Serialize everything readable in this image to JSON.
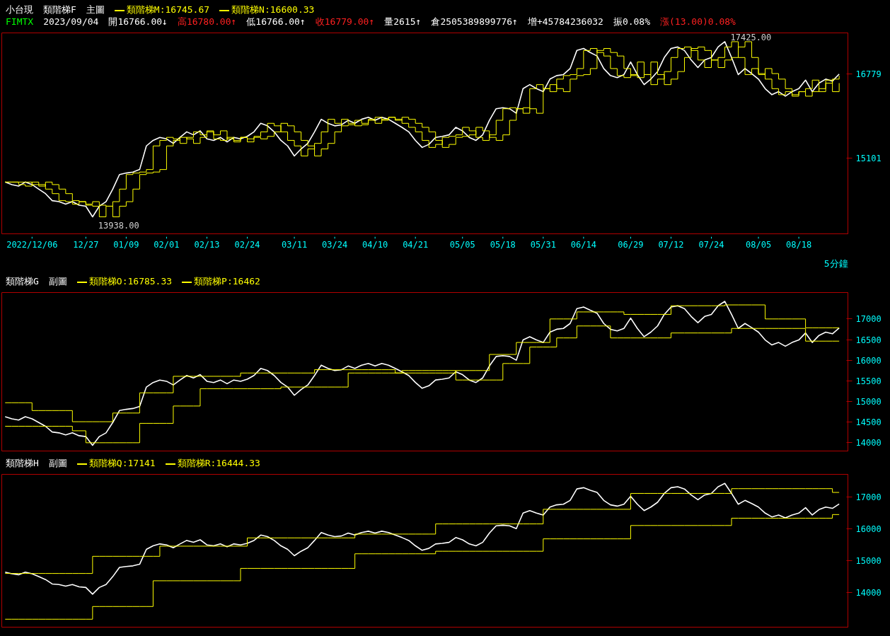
{
  "chart_data": [
    {
      "type": "line",
      "title": "小台現",
      "subtitle": "類階梯F",
      "xlabel": "5分鐘",
      "legend": "top left",
      "annotations": [
        "主圖",
        "FIMTX",
        "2023/09/04",
        "開16766.00↓",
        "高16780.00↑",
        "低16766.00↑",
        "收16779.00↑",
        "量2615↑",
        "倉2505389899776↑",
        "增+45784236032",
        "振0.08%",
        "漲(13.00)0.08%",
        {
          "text": "17425.00",
          "y": 17425
        },
        {
          "text": "13938.00",
          "y": 13938
        }
      ],
      "categories": [
        null,
        null,
        null,
        null,
        "2022/12/06",
        null,
        null,
        null,
        null,
        null,
        null,
        null,
        "12/27",
        null,
        null,
        null,
        null,
        null,
        "01/09",
        null,
        null,
        null,
        null,
        null,
        "02/01",
        null,
        null,
        null,
        null,
        null,
        "02/13",
        null,
        null,
        null,
        null,
        null,
        "02/24",
        null,
        null,
        null,
        null,
        null,
        null,
        "03/11",
        null,
        null,
        null,
        null,
        null,
        "03/24",
        null,
        null,
        null,
        null,
        null,
        "04/10",
        null,
        null,
        null,
        null,
        null,
        "04/21",
        null,
        null,
        null,
        null,
        null,
        null,
        "05/05",
        null,
        null,
        null,
        null,
        null,
        "05/18",
        null,
        null,
        null,
        null,
        null,
        "05/31",
        null,
        null,
        null,
        null,
        null,
        "06/14",
        null,
        null,
        null,
        null,
        null,
        null,
        "06/29",
        null,
        null,
        null,
        null,
        null,
        "07/12",
        null,
        null,
        null,
        null,
        null,
        "07/24",
        null,
        null,
        null,
        null,
        null,
        null,
        "08/05",
        null,
        null,
        null,
        null,
        null,
        "08/18",
        null,
        null,
        null,
        null,
        null,
        null
      ],
      "ylim": [
        13600,
        17600
      ],
      "yticks": [
        15101,
        16779
      ],
      "series": [
        {
          "color": "#ffffff",
          "values": [
            14630,
            14580,
            14550,
            14630,
            14580,
            14490,
            14400,
            14260,
            14240,
            14190,
            14240,
            14170,
            14150,
            13938,
            14150,
            14240,
            14490,
            14780,
            14810,
            14830,
            14880,
            15350,
            15460,
            15520,
            15490,
            15400,
            15520,
            15630,
            15570,
            15650,
            15490,
            15460,
            15520,
            15430,
            15520,
            15490,
            15540,
            15630,
            15800,
            15750,
            15630,
            15460,
            15350,
            15150,
            15290,
            15400,
            15630,
            15880,
            15800,
            15750,
            15770,
            15860,
            15800,
            15880,
            15920,
            15860,
            15920,
            15880,
            15800,
            15720,
            15630,
            15460,
            15320,
            15380,
            15520,
            15540,
            15570,
            15720,
            15650,
            15520,
            15460,
            15570,
            15860,
            16090,
            16110,
            16090,
            16000,
            16490,
            16570,
            16490,
            16430,
            16680,
            16750,
            16770,
            16890,
            17250,
            17290,
            17210,
            17140,
            16890,
            16750,
            16710,
            16770,
            17020,
            16770,
            16570,
            16680,
            16830,
            17110,
            17290,
            17320,
            17250,
            17060,
            16910,
            17060,
            17110,
            17320,
            17425,
            17110,
            16770,
            16890,
            16790,
            16680,
            16490,
            16370,
            16430,
            16340,
            16430,
            16490,
            16660,
            16430,
            16600,
            16680,
            16640,
            16779
          ]
        },
        {
          "type": "step",
          "name": "類階梯M:16745.67",
          "color": "#ffff00",
          "values": [
            14630,
            14630,
            14580,
            14550,
            14630,
            14580,
            14490,
            14400,
            14260,
            14240,
            14190,
            14240,
            14170,
            14150,
            13938,
            14150,
            14240,
            14490,
            14780,
            14810,
            14830,
            14880,
            15350,
            15460,
            15520,
            15490,
            15400,
            15520,
            15630,
            15570,
            15650,
            15490,
            15460,
            15520,
            15430,
            15520,
            15490,
            15540,
            15630,
            15800,
            15750,
            15630,
            15460,
            15350,
            15150,
            15290,
            15400,
            15630,
            15880,
            15800,
            15750,
            15770,
            15860,
            15800,
            15880,
            15920,
            15860,
            15920,
            15880,
            15800,
            15720,
            15630,
            15460,
            15320,
            15380,
            15520,
            15540,
            15570,
            15720,
            15650,
            15520,
            15460,
            15570,
            15860,
            16090,
            16110,
            16090,
            16000,
            16490,
            16570,
            16490,
            16430,
            16680,
            16750,
            16770,
            16890,
            17250,
            17290,
            17210,
            17140,
            16890,
            16750,
            16710,
            16770,
            17020,
            16770,
            16570,
            16680,
            16830,
            17110,
            17290,
            17320,
            17250,
            17060,
            16910,
            17060,
            17110,
            17320,
            17425,
            17110,
            16770,
            16890,
            16790,
            16680,
            16490,
            16370,
            16430,
            16340,
            16430,
            16490,
            16660,
            16430,
            16600,
            16680,
            16745.67
          ]
        },
        {
          "type": "step",
          "name": "類階梯N:16600.33",
          "color": "#ffff00",
          "values": [
            14630,
            14630,
            14630,
            14630,
            14580,
            14550,
            14630,
            14580,
            14490,
            14400,
            14260,
            14240,
            14190,
            14240,
            14170,
            14150,
            13938,
            14150,
            14240,
            14490,
            14780,
            14810,
            14830,
            14880,
            15350,
            15460,
            15520,
            15490,
            15400,
            15520,
            15630,
            15570,
            15650,
            15490,
            15460,
            15520,
            15430,
            15520,
            15490,
            15540,
            15630,
            15800,
            15750,
            15630,
            15460,
            15350,
            15150,
            15290,
            15400,
            15630,
            15880,
            15800,
            15750,
            15770,
            15860,
            15800,
            15880,
            15920,
            15860,
            15920,
            15880,
            15800,
            15720,
            15630,
            15460,
            15320,
            15380,
            15520,
            15540,
            15570,
            15720,
            15650,
            15520,
            15460,
            15570,
            15860,
            16090,
            16110,
            16090,
            16000,
            16490,
            16570,
            16490,
            16430,
            16680,
            16750,
            16770,
            16890,
            17250,
            17290,
            17210,
            17140,
            16890,
            16750,
            16710,
            16770,
            17020,
            16770,
            16570,
            16680,
            16830,
            17110,
            17290,
            17320,
            17250,
            17060,
            16910,
            17060,
            17110,
            17320,
            17425,
            17110,
            16770,
            16890,
            16790,
            16680,
            16490,
            16370,
            16430,
            16340,
            16430,
            16490,
            16660,
            16430,
            16600.33
          ]
        }
      ]
    },
    {
      "type": "line",
      "title": "類階梯G",
      "subtitle": "副圖",
      "tick_labels": "y",
      "legend": "top left",
      "categories": [
        null,
        null,
        null,
        null,
        null,
        null,
        null,
        null,
        null,
        null,
        null,
        null,
        null,
        null,
        null,
        null,
        null,
        null,
        null,
        null,
        null,
        null,
        null,
        null,
        null,
        null,
        null,
        null,
        null,
        null,
        null,
        null,
        null,
        null,
        null,
        null,
        null,
        null,
        null,
        null,
        null,
        null,
        null,
        null,
        null,
        null,
        null,
        null,
        null,
        null,
        null,
        null,
        null,
        null,
        null,
        null,
        null,
        null,
        null,
        null,
        null,
        null,
        null,
        null,
        null,
        null,
        null,
        null,
        null,
        null,
        null,
        null,
        null,
        null,
        null,
        null,
        null,
        null,
        null,
        null,
        null,
        null,
        null,
        null,
        null,
        null,
        null,
        null,
        null,
        null,
        null,
        null,
        null,
        null,
        null,
        null,
        null,
        null,
        null,
        null,
        null,
        null,
        null,
        null,
        null,
        null,
        null,
        null,
        null,
        null,
        null,
        null,
        null,
        null,
        null,
        null,
        null,
        null,
        null,
        null,
        null,
        null,
        null,
        null,
        null
      ],
      "ylim": [
        13800,
        17640
      ],
      "yticks": [
        14000,
        14500,
        15000,
        15500,
        16000,
        16500,
        17000
      ],
      "series": [
        {
          "color": "#ffffff",
          "values": [
            14630,
            14580,
            14550,
            14630,
            14580,
            14490,
            14400,
            14260,
            14240,
            14190,
            14240,
            14170,
            14150,
            13938,
            14150,
            14240,
            14490,
            14780,
            14810,
            14830,
            14880,
            15350,
            15460,
            15520,
            15490,
            15400,
            15520,
            15630,
            15570,
            15650,
            15490,
            15460,
            15520,
            15430,
            15520,
            15490,
            15540,
            15630,
            15800,
            15750,
            15630,
            15460,
            15350,
            15150,
            15290,
            15400,
            15630,
            15880,
            15800,
            15750,
            15770,
            15860,
            15800,
            15880,
            15920,
            15860,
            15920,
            15880,
            15800,
            15720,
            15630,
            15460,
            15320,
            15380,
            15520,
            15540,
            15570,
            15720,
            15650,
            15520,
            15460,
            15570,
            15860,
            16090,
            16110,
            16090,
            16000,
            16490,
            16570,
            16490,
            16430,
            16680,
            16750,
            16770,
            16890,
            17250,
            17290,
            17210,
            17140,
            16890,
            16750,
            16710,
            16770,
            17020,
            16770,
            16570,
            16680,
            16830,
            17110,
            17290,
            17320,
            17250,
            17060,
            16910,
            17060,
            17110,
            17320,
            17425,
            17110,
            16770,
            16890,
            16790,
            16680,
            16490,
            16370,
            16430,
            16340,
            16430,
            16490,
            16660,
            16430,
            16600,
            16680,
            16640,
            16779
          ]
        },
        {
          "type": "step",
          "name": "類階梯O:16785.33",
          "color": "#ffff00",
          "values": [
            14970,
            14970,
            14970,
            14970,
            14780,
            14780,
            14780,
            14780,
            14780,
            14780,
            14510,
            14510,
            14510,
            14510,
            14510,
            14510,
            14720,
            14720,
            14720,
            14720,
            15210,
            15210,
            15210,
            15210,
            15210,
            15610,
            15610,
            15610,
            15610,
            15610,
            15610,
            15610,
            15610,
            15610,
            15610,
            15690,
            15690,
            15690,
            15690,
            15690,
            15690,
            15690,
            15690,
            15690,
            15690,
            15690,
            15770,
            15770,
            15770,
            15770,
            15770,
            15770,
            15770,
            15770,
            15770,
            15770,
            15770,
            15770,
            15690,
            15690,
            15690,
            15690,
            15690,
            15690,
            15690,
            15690,
            15690,
            15750,
            15750,
            15750,
            15750,
            15750,
            16140,
            16140,
            16140,
            16140,
            16430,
            16430,
            16430,
            16430,
            16430,
            17000,
            17000,
            17000,
            17000,
            17170,
            17170,
            17170,
            17170,
            17170,
            17170,
            17170,
            17110,
            17110,
            17110,
            17110,
            17110,
            17110,
            17110,
            17320,
            17320,
            17320,
            17320,
            17320,
            17320,
            17320,
            17320,
            17340,
            17340,
            17340,
            17340,
            17340,
            17340,
            17000,
            17000,
            17000,
            17000,
            17000,
            17000,
            16785.33,
            16785.33,
            16785.33,
            16785.33,
            16785.33,
            16785.33
          ]
        },
        {
          "type": "step",
          "name": "類階梯P:16462",
          "color": "#ffff00",
          "values": [
            14400,
            14400,
            14400,
            14400,
            14400,
            14400,
            14400,
            14400,
            14400,
            14400,
            14290,
            14290,
            14000,
            14000,
            14000,
            14000,
            14000,
            14000,
            14000,
            14000,
            14470,
            14470,
            14470,
            14470,
            14470,
            14890,
            14890,
            14890,
            14890,
            15310,
            15310,
            15310,
            15310,
            15310,
            15310,
            15310,
            15310,
            15310,
            15310,
            15310,
            15310,
            15350,
            15350,
            15350,
            15350,
            15350,
            15350,
            15350,
            15350,
            15350,
            15350,
            15690,
            15690,
            15690,
            15690,
            15690,
            15690,
            15690,
            15690,
            15750,
            15750,
            15750,
            15750,
            15750,
            15750,
            15750,
            15750,
            15520,
            15520,
            15520,
            15520,
            15520,
            15520,
            15520,
            15920,
            15920,
            15920,
            15920,
            16320,
            16320,
            16320,
            16320,
            16540,
            16540,
            16540,
            16830,
            16830,
            16830,
            16830,
            16830,
            16540,
            16540,
            16540,
            16540,
            16540,
            16540,
            16540,
            16540,
            16540,
            16660,
            16660,
            16660,
            16660,
            16660,
            16660,
            16660,
            16660,
            16660,
            16770,
            16770,
            16770,
            16770,
            16770,
            16770,
            16770,
            16770,
            16770,
            16770,
            16770,
            16462,
            16462,
            16462,
            16462,
            16462,
            16462
          ]
        }
      ]
    },
    {
      "type": "line",
      "title": "類階梯H",
      "subtitle": "副圖",
      "tick_labels": "y",
      "legend": "top left",
      "categories": [
        null,
        null,
        null,
        null,
        null,
        null,
        null,
        null,
        null,
        null,
        null,
        null,
        null,
        null,
        null,
        null,
        null,
        null,
        null,
        null,
        null,
        null,
        null,
        null,
        null,
        null,
        null,
        null,
        null,
        null,
        null,
        null,
        null,
        null,
        null,
        null,
        null,
        null,
        null,
        null,
        null,
        null,
        null,
        null,
        null,
        null,
        null,
        null,
        null,
        null,
        null,
        null,
        null,
        null,
        null,
        null,
        null,
        null,
        null,
        null,
        null,
        null,
        null,
        null,
        null,
        null,
        null,
        null,
        null,
        null,
        null,
        null,
        null,
        null,
        null,
        null,
        null,
        null,
        null,
        null,
        null,
        null,
        null,
        null,
        null,
        null,
        null,
        null,
        null,
        null,
        null,
        null,
        null,
        null,
        null,
        null,
        null,
        null,
        null,
        null,
        null,
        null,
        null,
        null,
        null,
        null,
        null,
        null,
        null,
        null,
        null,
        null,
        null,
        null,
        null,
        null,
        null,
        null,
        null,
        null,
        null,
        null,
        null,
        null,
        null
      ],
      "ylim": [
        12900,
        17710
      ],
      "yticks": [
        14000,
        15000,
        16000,
        17000
      ],
      "series": [
        {
          "color": "#ffffff",
          "values": [
            14630,
            14580,
            14550,
            14630,
            14580,
            14490,
            14400,
            14260,
            14240,
            14190,
            14240,
            14170,
            14150,
            13938,
            14150,
            14240,
            14490,
            14780,
            14810,
            14830,
            14880,
            15350,
            15460,
            15520,
            15490,
            15400,
            15520,
            15630,
            15570,
            15650,
            15490,
            15460,
            15520,
            15430,
            15520,
            15490,
            15540,
            15630,
            15800,
            15750,
            15630,
            15460,
            15350,
            15150,
            15290,
            15400,
            15630,
            15880,
            15800,
            15750,
            15770,
            15860,
            15800,
            15880,
            15920,
            15860,
            15920,
            15880,
            15800,
            15720,
            15630,
            15460,
            15320,
            15380,
            15520,
            15540,
            15570,
            15720,
            15650,
            15520,
            15460,
            15570,
            15860,
            16090,
            16110,
            16090,
            16000,
            16490,
            16570,
            16490,
            16430,
            16680,
            16750,
            16770,
            16890,
            17250,
            17290,
            17210,
            17140,
            16890,
            16750,
            16710,
            16770,
            17020,
            16770,
            16570,
            16680,
            16830,
            17110,
            17290,
            17320,
            17250,
            17060,
            16910,
            17060,
            17110,
            17320,
            17425,
            17110,
            16770,
            16890,
            16790,
            16680,
            16490,
            16370,
            16430,
            16340,
            16430,
            16490,
            16660,
            16430,
            16600,
            16680,
            16640,
            16779
          ]
        },
        {
          "type": "step",
          "name": "類階梯Q:17141",
          "color": "#ffff00",
          "values": [
            14590,
            14590,
            14590,
            14590,
            14590,
            14590,
            14590,
            14590,
            14590,
            14590,
            14590,
            14590,
            14590,
            15130,
            15130,
            15130,
            15130,
            15130,
            15130,
            15130,
            15130,
            15130,
            15130,
            15450,
            15450,
            15450,
            15450,
            15450,
            15450,
            15450,
            15450,
            15450,
            15450,
            15450,
            15450,
            15450,
            15710,
            15710,
            15710,
            15710,
            15710,
            15710,
            15710,
            15710,
            15710,
            15710,
            15710,
            15710,
            15710,
            15710,
            15710,
            15710,
            15830,
            15830,
            15830,
            15830,
            15830,
            15830,
            15830,
            15830,
            15830,
            15830,
            15830,
            15830,
            16150,
            16150,
            16150,
            16150,
            16150,
            16150,
            16150,
            16150,
            16150,
            16150,
            16150,
            16150,
            16150,
            16150,
            16150,
            16150,
            16610,
            16610,
            16610,
            16610,
            16610,
            16610,
            16610,
            16610,
            16610,
            16610,
            16610,
            16610,
            16610,
            17110,
            17110,
            17110,
            17110,
            17110,
            17110,
            17110,
            17110,
            17110,
            17110,
            17110,
            17110,
            17110,
            17110,
            17110,
            17260,
            17260,
            17260,
            17260,
            17260,
            17260,
            17260,
            17260,
            17260,
            17260,
            17260,
            17260,
            17260,
            17260,
            17260,
            17141,
            17141
          ]
        },
        {
          "type": "step",
          "name": "類階梯R:16444.33",
          "color": "#ffff00",
          "values": [
            13150,
            13150,
            13150,
            13150,
            13150,
            13150,
            13150,
            13150,
            13150,
            13150,
            13150,
            13150,
            13150,
            13550,
            13550,
            13550,
            13550,
            13550,
            13550,
            13550,
            13550,
            13550,
            14360,
            14360,
            14360,
            14360,
            14360,
            14360,
            14360,
            14360,
            14360,
            14360,
            14360,
            14360,
            14360,
            14750,
            14750,
            14750,
            14750,
            14750,
            14750,
            14750,
            14750,
            14750,
            14750,
            14750,
            14750,
            14750,
            14750,
            14750,
            14750,
            14750,
            15210,
            15210,
            15210,
            15210,
            15210,
            15210,
            15210,
            15210,
            15210,
            15210,
            15210,
            15210,
            15290,
            15290,
            15290,
            15290,
            15290,
            15290,
            15290,
            15290,
            15290,
            15290,
            15290,
            15290,
            15290,
            15290,
            15290,
            15290,
            15680,
            15680,
            15680,
            15680,
            15680,
            15680,
            15680,
            15680,
            15680,
            15680,
            15680,
            15680,
            15680,
            16100,
            16100,
            16100,
            16100,
            16100,
            16100,
            16100,
            16100,
            16100,
            16100,
            16100,
            16100,
            16100,
            16100,
            16100,
            16330,
            16330,
            16330,
            16330,
            16330,
            16330,
            16330,
            16330,
            16330,
            16330,
            16330,
            16330,
            16330,
            16330,
            16330,
            16444.33,
            16444.33
          ]
        }
      ]
    }
  ]
}
